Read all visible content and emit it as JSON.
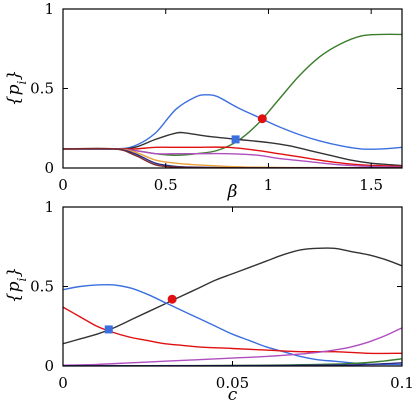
{
  "chart_data": [
    {
      "type": "line",
      "xlabel": "β",
      "ylabel": "{p_i}",
      "xlim": [
        0,
        1.65
      ],
      "ylim": [
        0,
        1
      ],
      "xticks": [
        0,
        0.5,
        1,
        1.5
      ],
      "xtick_labels": [
        "0",
        "0.5",
        "1",
        "1.5"
      ],
      "yticks": [
        0,
        0.5,
        1
      ],
      "ytick_labels": [
        "0",
        "0.5",
        "1"
      ],
      "grid": false,
      "series": [
        {
          "color": "#3a7d2c",
          "x": [
            0,
            0.25,
            0.35,
            0.45,
            0.55,
            0.65,
            0.75,
            0.85,
            0.95,
            1.05,
            1.15,
            1.25,
            1.35,
            1.45,
            1.55,
            1.65
          ],
          "y": [
            0.12,
            0.12,
            0.11,
            0.09,
            0.08,
            0.09,
            0.11,
            0.17,
            0.28,
            0.43,
            0.58,
            0.7,
            0.78,
            0.83,
            0.84,
            0.84
          ]
        },
        {
          "color": "#3b6fe0",
          "x": [
            0,
            0.25,
            0.35,
            0.45,
            0.55,
            0.65,
            0.7,
            0.75,
            0.85,
            0.95,
            1.05,
            1.15,
            1.25,
            1.35,
            1.45,
            1.55,
            1.65
          ],
          "y": [
            0.12,
            0.12,
            0.14,
            0.22,
            0.37,
            0.45,
            0.46,
            0.45,
            0.38,
            0.32,
            0.26,
            0.21,
            0.17,
            0.14,
            0.12,
            0.12,
            0.13
          ]
        },
        {
          "color": "#333333",
          "x": [
            0,
            0.25,
            0.35,
            0.45,
            0.55,
            0.6,
            0.7,
            0.85,
            1.0,
            1.1,
            1.2,
            1.3,
            1.4,
            1.5,
            1.6,
            1.65
          ],
          "y": [
            0.12,
            0.12,
            0.13,
            0.18,
            0.22,
            0.22,
            0.2,
            0.18,
            0.16,
            0.14,
            0.11,
            0.08,
            0.05,
            0.03,
            0.02,
            0.015
          ]
        },
        {
          "color": "#e01010",
          "x": [
            0,
            0.25,
            0.35,
            0.45,
            0.55,
            0.65,
            0.8,
            0.95,
            1.05,
            1.15,
            1.3,
            1.45,
            1.65
          ],
          "y": [
            0.12,
            0.12,
            0.12,
            0.13,
            0.13,
            0.13,
            0.13,
            0.11,
            0.09,
            0.07,
            0.04,
            0.02,
            0.01
          ]
        },
        {
          "color": "#b04ec0",
          "x": [
            0,
            0.25,
            0.35,
            0.45,
            0.55,
            0.65,
            0.8,
            0.95,
            1.05,
            1.2,
            1.35,
            1.5,
            1.65
          ],
          "y": [
            0.12,
            0.12,
            0.11,
            0.09,
            0.09,
            0.09,
            0.09,
            0.08,
            0.06,
            0.04,
            0.02,
            0.01,
            0.005
          ]
        },
        {
          "color": "#e8a33a",
          "x": [
            0,
            0.25,
            0.35,
            0.45,
            0.55,
            0.65,
            0.8,
            0.95,
            1.1,
            1.3,
            1.5,
            1.65
          ],
          "y": [
            0.12,
            0.12,
            0.1,
            0.05,
            0.03,
            0.02,
            0.01,
            0.005,
            0.003,
            0.002,
            0.001,
            0.001
          ]
        },
        {
          "color": "#2c2c8c",
          "x": [
            0,
            0.25,
            0.35,
            0.45,
            0.55,
            0.65,
            0.8,
            1.0,
            1.3,
            1.65
          ],
          "y": [
            0.12,
            0.12,
            0.09,
            0.03,
            0.01,
            0.005,
            0.002,
            0.001,
            0.001,
            0.001
          ]
        },
        {
          "color": "#7a2a2a",
          "x": [
            0,
            0.25,
            0.35,
            0.45,
            0.55,
            0.7,
            0.9,
            1.2,
            1.65
          ],
          "y": [
            0.12,
            0.12,
            0.08,
            0.02,
            0.006,
            0.002,
            0.001,
            0.001,
            0.001
          ]
        }
      ],
      "markers": [
        {
          "x": 0.84,
          "y": 0.18,
          "shape": "square",
          "color": "#3b6fe0"
        },
        {
          "x": 0.97,
          "y": 0.31,
          "shape": "circle",
          "color": "#e01010"
        }
      ]
    },
    {
      "type": "line",
      "xlabel": "c",
      "ylabel": "{p_i}",
      "xlim": [
        0,
        0.1
      ],
      "ylim": [
        0,
        1
      ],
      "xticks": [
        0,
        0.05,
        0.1
      ],
      "xtick_labels": [
        "0",
        "0.05",
        "0.1"
      ],
      "yticks": [
        0,
        0.5,
        1
      ],
      "ytick_labels": [
        "0",
        "0.5",
        "1"
      ],
      "grid": false,
      "series": [
        {
          "color": "#333333",
          "x": [
            0,
            0.005,
            0.01,
            0.015,
            0.02,
            0.025,
            0.03,
            0.035,
            0.04,
            0.045,
            0.05,
            0.055,
            0.06,
            0.065,
            0.07,
            0.075,
            0.08,
            0.085,
            0.09,
            0.095,
            0.1
          ],
          "y": [
            0.14,
            0.17,
            0.2,
            0.24,
            0.29,
            0.34,
            0.39,
            0.44,
            0.49,
            0.54,
            0.58,
            0.62,
            0.66,
            0.7,
            0.73,
            0.74,
            0.74,
            0.72,
            0.7,
            0.67,
            0.63
          ]
        },
        {
          "color": "#3b6fe0",
          "x": [
            0,
            0.005,
            0.01,
            0.015,
            0.02,
            0.025,
            0.03,
            0.035,
            0.04,
            0.045,
            0.05,
            0.055,
            0.06,
            0.065,
            0.07,
            0.075,
            0.08,
            0.085,
            0.09,
            0.095,
            0.1
          ],
          "y": [
            0.48,
            0.5,
            0.51,
            0.51,
            0.49,
            0.45,
            0.4,
            0.35,
            0.3,
            0.25,
            0.2,
            0.16,
            0.12,
            0.09,
            0.06,
            0.04,
            0.03,
            0.02,
            0.01,
            0.01,
            0.01
          ]
        },
        {
          "color": "#e01010",
          "x": [
            0,
            0.005,
            0.01,
            0.015,
            0.02,
            0.025,
            0.03,
            0.035,
            0.04,
            0.05,
            0.06,
            0.07,
            0.08,
            0.09,
            0.1
          ],
          "y": [
            0.37,
            0.31,
            0.25,
            0.21,
            0.18,
            0.16,
            0.14,
            0.13,
            0.12,
            0.11,
            0.1,
            0.09,
            0.09,
            0.08,
            0.08
          ]
        },
        {
          "color": "#b04ec0",
          "x": [
            0,
            0.01,
            0.02,
            0.03,
            0.04,
            0.05,
            0.06,
            0.07,
            0.075,
            0.08,
            0.085,
            0.09,
            0.095,
            0.1
          ],
          "y": [
            0.005,
            0.01,
            0.02,
            0.03,
            0.04,
            0.05,
            0.06,
            0.075,
            0.085,
            0.1,
            0.12,
            0.15,
            0.19,
            0.24
          ]
        },
        {
          "color": "#3a7d2c",
          "x": [
            0,
            0.02,
            0.04,
            0.06,
            0.07,
            0.08,
            0.085,
            0.09,
            0.095,
            0.1
          ],
          "y": [
            0.001,
            0.002,
            0.003,
            0.005,
            0.008,
            0.012,
            0.016,
            0.022,
            0.032,
            0.045
          ]
        },
        {
          "color": "#2c2c8c",
          "x": [
            0,
            0.02,
            0.04,
            0.06,
            0.08,
            0.09,
            0.1
          ],
          "y": [
            0.001,
            0.001,
            0.002,
            0.003,
            0.006,
            0.01,
            0.02
          ]
        }
      ],
      "markers": [
        {
          "x": 0.0135,
          "y": 0.23,
          "shape": "square",
          "color": "#3b6fe0"
        },
        {
          "x": 0.0322,
          "y": 0.42,
          "shape": "circle",
          "color": "#e01010"
        }
      ]
    }
  ]
}
